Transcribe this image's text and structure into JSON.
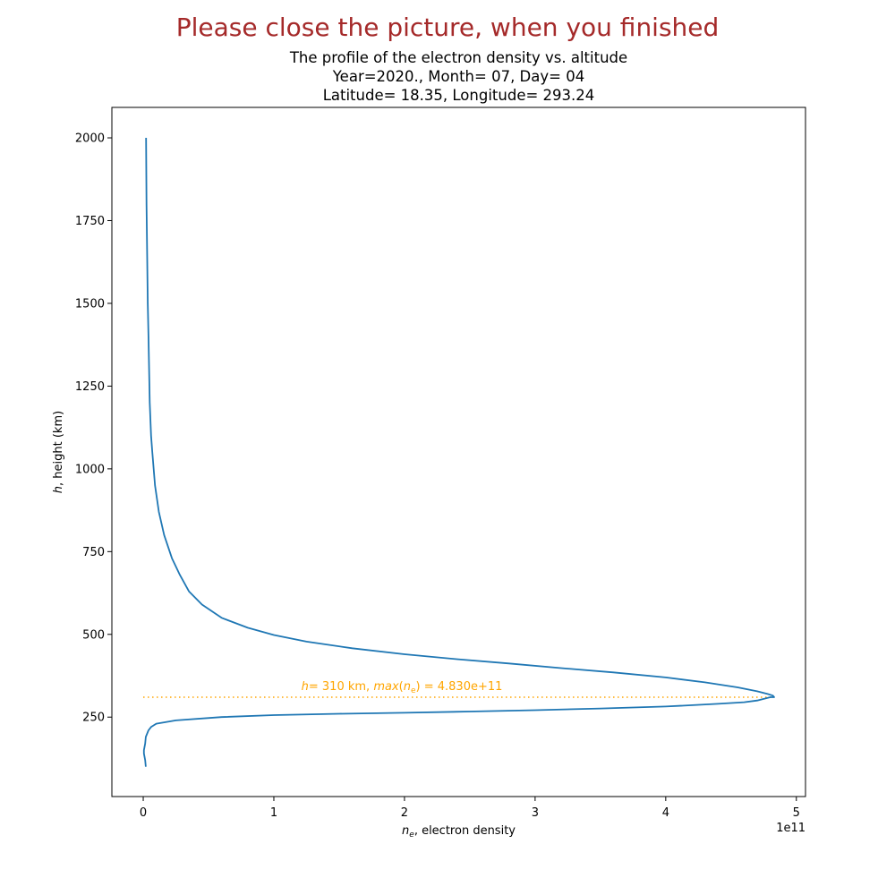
{
  "banner": "Please close the picture, when you finished",
  "chart_data": {
    "type": "line",
    "title": "The profile of the electron density vs. altitude",
    "subtitle_lines": [
      "Year=2020., Month= 07, Day= 04",
      "Latitude= 18.35, Longitude= 293.24"
    ],
    "xlabel_var": "n",
    "xlabel_sub": "e",
    "xlabel_rest": ", electron density",
    "ylabel_var": "h",
    "ylabel_rest": ", height (km)",
    "x_offset_text": "1e11",
    "xlim": [
      -0.24,
      5.07
    ],
    "ylim": [
      10,
      2092
    ],
    "xticks": [
      0,
      1,
      2,
      3,
      4,
      5
    ],
    "yticks": [
      250,
      500,
      750,
      1000,
      1250,
      1500,
      1750,
      2000
    ],
    "x_scale_factor": 100000000000.0,
    "series": [
      {
        "color": "#1f77b4",
        "x": [
          0.02,
          0.015,
          0.005,
          0.005,
          0.015,
          0.02,
          0.04,
          0.06,
          0.1,
          0.25,
          0.6,
          1.0,
          1.5,
          2.0,
          2.5,
          3.0,
          3.5,
          4.0,
          4.4,
          4.6,
          4.7,
          4.75,
          4.78,
          4.8,
          4.83,
          4.82,
          4.78,
          4.7,
          4.55,
          4.3,
          4.0,
          3.6,
          3.2,
          2.8,
          2.4,
          2.0,
          1.6,
          1.25,
          1.0,
          0.8,
          0.6,
          0.45,
          0.35,
          0.28,
          0.22,
          0.16,
          0.12,
          0.09,
          0.08,
          0.07,
          0.06,
          0.05,
          0.045,
          0.04,
          0.035,
          0.03,
          0.025,
          0.022
        ],
        "y": [
          100,
          120,
          140,
          150,
          170,
          190,
          210,
          220,
          230,
          240,
          250,
          256,
          260,
          263,
          267,
          271,
          276,
          282,
          290,
          295,
          300,
          305,
          308,
          310,
          310,
          315,
          320,
          328,
          340,
          355,
          370,
          385,
          398,
          412,
          425,
          440,
          458,
          478,
          498,
          520,
          550,
          590,
          630,
          680,
          730,
          800,
          870,
          950,
          1000,
          1050,
          1100,
          1200,
          1300,
          1400,
          1500,
          1650,
          1800,
          2000
        ]
      }
    ],
    "annotation": {
      "h_value": 310,
      "color": "#ffa500",
      "text_parts": [
        "h",
        "= 310 km, ",
        "max",
        "(",
        "n",
        "e",
        ") = 4.830e+11"
      ],
      "x_anchor": 1.21
    }
  }
}
